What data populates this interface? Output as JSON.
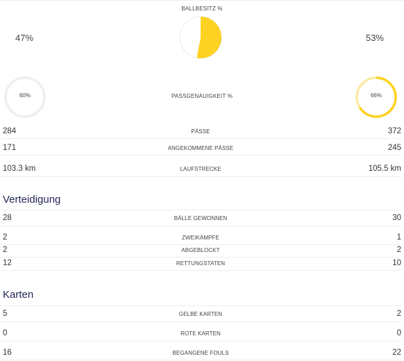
{
  "possession": {
    "label": "BALLBESITZ %",
    "home": "47%",
    "away": "53%",
    "home_value": 47,
    "away_value": 53
  },
  "pass_accuracy": {
    "label": "PASSGENAUIGKEIT %",
    "home": "60%",
    "away": "66%",
    "home_value": 60,
    "away_value": 66
  },
  "colors": {
    "accent": "#fdd222",
    "accent_light": "#fbeaa5",
    "ring_track": "#efefef",
    "section_heading": "#232757"
  },
  "stats": [
    {
      "label": "PÄSSE",
      "home": "284",
      "away": "372"
    },
    {
      "label": "ANGEKOMMENE PÄSSE",
      "home": "171",
      "away": "245"
    },
    {
      "label": "LAUFSTRECKE",
      "home": "103.3 km",
      "away": "105.5 km"
    }
  ],
  "defense": {
    "title": "Verteidigung",
    "stats": [
      {
        "label": "BÄLLE GEWONNEN",
        "home": "28",
        "away": "30"
      },
      {
        "label": "ZWEIKÄMPFE",
        "home": "2",
        "away": "1"
      },
      {
        "label": "ABGEBLOCKT",
        "home": "2",
        "away": "2"
      },
      {
        "label": "RETTUNGSTATEN",
        "home": "12",
        "away": "10"
      }
    ]
  },
  "cards": {
    "title": "Karten",
    "stats": [
      {
        "label": "GELBE KARTEN",
        "home": "5",
        "away": "2"
      },
      {
        "label": "ROTE KARTEN",
        "home": "0",
        "away": "0"
      },
      {
        "label": "BEGANGENE FOULS",
        "home": "16",
        "away": "22"
      }
    ]
  }
}
